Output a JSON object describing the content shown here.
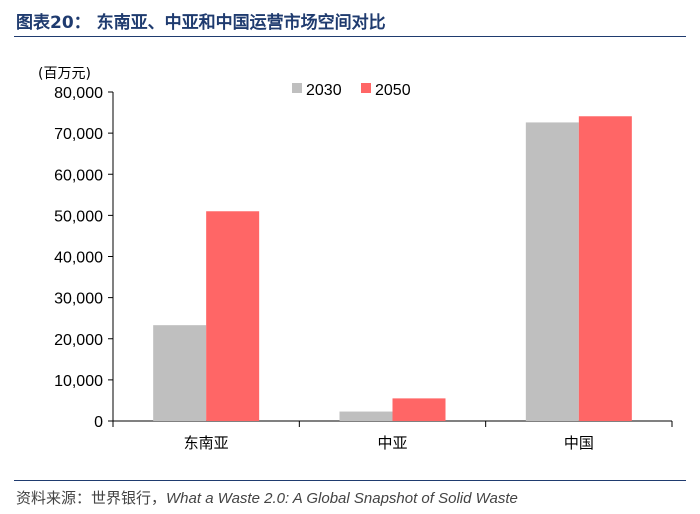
{
  "header": {
    "title": "图表20：  东南亚、中亚和中国运营市场空间对比"
  },
  "footer": {
    "source_prefix": "资料来源：世界银行，",
    "source_title": "What a Waste 2.0: A Global Snapshot of Solid Waste"
  },
  "chart_data": {
    "type": "bar",
    "unit_label": "(百万元)",
    "categories": [
      "东南亚",
      "中亚",
      "中国"
    ],
    "series": [
      {
        "name": "2030",
        "values": [
          23300,
          2300,
          72600
        ],
        "color": "#bfbfbf"
      },
      {
        "name": "2050",
        "values": [
          51000,
          5500,
          74100
        ],
        "color": "#ff6666"
      }
    ],
    "ylim": [
      0,
      80000
    ],
    "yticks": [
      "0",
      "10,000",
      "20,000",
      "30,000",
      "40,000",
      "50,000",
      "60,000",
      "70,000",
      "80,000"
    ],
    "ytick_values": [
      0,
      10000,
      20000,
      30000,
      40000,
      50000,
      60000,
      70000,
      80000
    ],
    "grid": false,
    "legend_position": "top-center"
  }
}
